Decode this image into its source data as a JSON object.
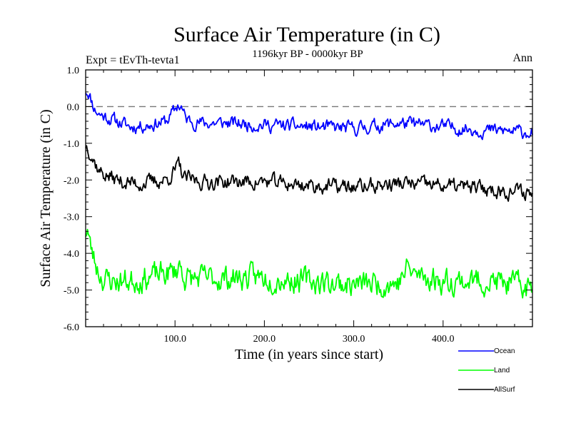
{
  "chart_data": {
    "type": "line",
    "title": "Surface Air Temperature (in C)",
    "subtitle": "1196kyr BP - 0000kyr BP",
    "left_label": "Expt = tEvTh-tevta1",
    "right_label": "Ann",
    "xlabel": "Time (in years since start)",
    "ylabel": "Surface Air Temperature (in C)",
    "xlim": [
      0,
      500
    ],
    "ylim": [
      -6.0,
      1.0
    ],
    "x_ticks": [
      100,
      200,
      300,
      400
    ],
    "x_tick_labels": [
      "100.0",
      "200.0",
      "300.0",
      "400.0"
    ],
    "y_ticks": [
      1.0,
      0.0,
      -1.0,
      -2.0,
      -3.0,
      -4.0,
      -5.0,
      -6.0
    ],
    "y_tick_labels": [
      "1.0",
      "0.0",
      "-1.0",
      "-2.0",
      "-3.0",
      "-4.0",
      "-5.0",
      "-6.0"
    ],
    "reference_line": 0.0,
    "series": [
      {
        "name": "Ocean",
        "color": "#0000ff",
        "anchors": [
          [
            0,
            0.45
          ],
          [
            3,
            0.4
          ],
          [
            6,
            0.2
          ],
          [
            10,
            -0.05
          ],
          [
            15,
            -0.2
          ],
          [
            20,
            -0.25
          ],
          [
            30,
            -0.35
          ],
          [
            40,
            -0.45
          ],
          [
            50,
            -0.55
          ],
          [
            70,
            -0.5
          ],
          [
            90,
            -0.4
          ],
          [
            100,
            -0.1
          ],
          [
            103,
            0.05
          ],
          [
            107,
            0.0
          ],
          [
            112,
            -0.35
          ],
          [
            130,
            -0.45
          ],
          [
            160,
            -0.45
          ],
          [
            200,
            -0.5
          ],
          [
            250,
            -0.55
          ],
          [
            300,
            -0.6
          ],
          [
            350,
            -0.45
          ],
          [
            400,
            -0.55
          ],
          [
            450,
            -0.65
          ],
          [
            500,
            -0.7
          ]
        ],
        "noise": 0.15,
        "seed": 11
      },
      {
        "name": "Land",
        "color": "#00ff00",
        "anchors": [
          [
            0,
            -3.4
          ],
          [
            2,
            -3.3
          ],
          [
            5,
            -3.8
          ],
          [
            10,
            -4.2
          ],
          [
            15,
            -4.5
          ],
          [
            20,
            -4.7
          ],
          [
            30,
            -4.75
          ],
          [
            50,
            -4.75
          ],
          [
            100,
            -4.5
          ],
          [
            105,
            -4.3
          ],
          [
            112,
            -4.7
          ],
          [
            200,
            -4.65
          ],
          [
            250,
            -4.75
          ],
          [
            300,
            -4.85
          ],
          [
            350,
            -4.8
          ],
          [
            360,
            -4.4
          ],
          [
            370,
            -4.6
          ],
          [
            400,
            -4.75
          ],
          [
            450,
            -4.75
          ],
          [
            500,
            -4.95
          ]
        ],
        "noise": 0.28,
        "seed": 23
      },
      {
        "name": "AllSurf",
        "color": "#000000",
        "anchors": [
          [
            0,
            -1.05
          ],
          [
            3,
            -1.1
          ],
          [
            8,
            -1.4
          ],
          [
            15,
            -1.75
          ],
          [
            25,
            -1.9
          ],
          [
            40,
            -2.05
          ],
          [
            60,
            -2.1
          ],
          [
            90,
            -2.0
          ],
          [
            100,
            -1.75
          ],
          [
            104,
            -1.6
          ],
          [
            110,
            -1.95
          ],
          [
            130,
            -2.05
          ],
          [
            200,
            -2.05
          ],
          [
            250,
            -2.15
          ],
          [
            300,
            -2.2
          ],
          [
            350,
            -2.1
          ],
          [
            400,
            -2.15
          ],
          [
            450,
            -2.25
          ],
          [
            500,
            -2.35
          ]
        ],
        "noise": 0.17,
        "seed": 37
      }
    ]
  },
  "legend": {
    "items": [
      {
        "name": "Ocean",
        "color": "#0000ff"
      },
      {
        "name": "Land",
        "color": "#00ff00"
      },
      {
        "name": "AllSurf",
        "color": "#000000"
      }
    ]
  }
}
